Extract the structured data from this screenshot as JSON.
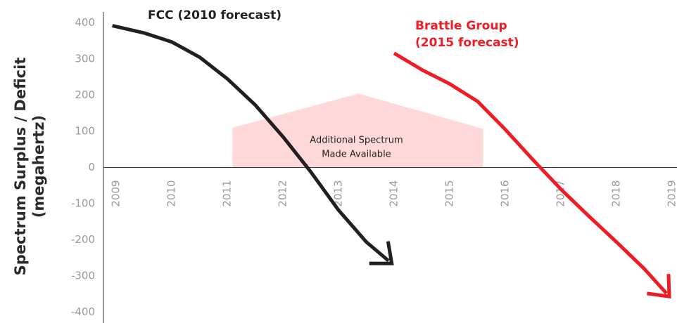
{
  "chart_data": {
    "type": "line",
    "ylabel_lines": [
      "Spectrum Surplus / Deficit",
      "(megahertz)"
    ],
    "xlim": [
      2008.77,
      2019.09
    ],
    "ylim": [
      -430,
      430
    ],
    "xticks": [
      2009,
      2010,
      2011,
      2012,
      2013,
      2014,
      2015,
      2016,
      2017,
      2018,
      2019
    ],
    "yticks": [
      400,
      300,
      200,
      100,
      0,
      -100,
      -200,
      -300,
      -400
    ],
    "area": {
      "label_lines": [
        "Additional Spectrum",
        "Made Available"
      ],
      "color": "#ffd9d9",
      "x": [
        2011.09,
        2013.36,
        2015.6
      ],
      "values": [
        110,
        204,
        107
      ]
    },
    "series": [
      {
        "label_lines": [
          "FCC (2010 forecast)"
        ],
        "color": "#231f20",
        "x": [
          2008.93,
          2009.5,
          2010,
          2010.5,
          2011,
          2011.5,
          2012,
          2012.5,
          2013,
          2013.5,
          2013.9
        ],
        "values": [
          392,
          372,
          347,
          305,
          245,
          173,
          85,
          -12,
          -118,
          -206,
          -258
        ]
      },
      {
        "label_lines": [
          "Brattle Group",
          "(2015 forecast)"
        ],
        "color": "#ee1c25",
        "x": [
          2014.0,
          2014.5,
          2015,
          2015.5,
          2016,
          2016.5,
          2017,
          2017.5,
          2018,
          2018.5,
          2018.9
        ],
        "values": [
          316,
          270,
          231,
          183,
          105,
          21,
          -60,
          -134,
          -206,
          -280,
          -348
        ]
      }
    ]
  }
}
